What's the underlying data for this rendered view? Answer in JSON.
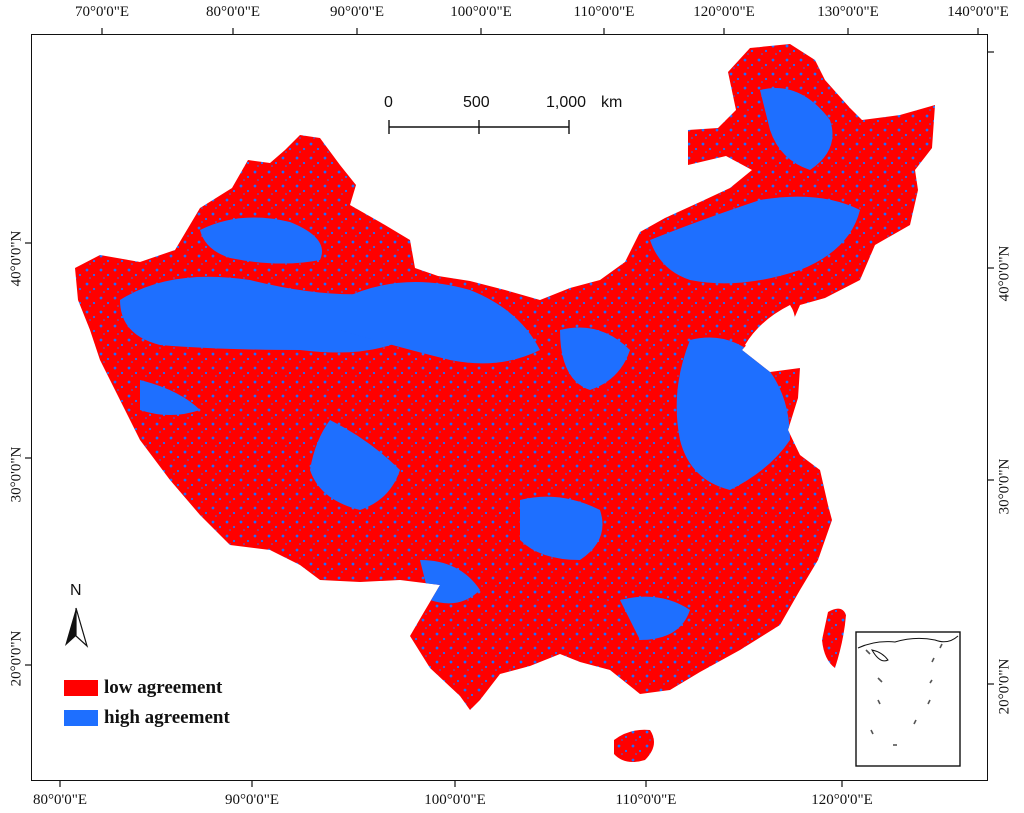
{
  "axes": {
    "top": [
      "70°0'0\"E",
      "80°0'0\"E",
      "90°0'0\"E",
      "100°0'0\"E",
      "110°0'0\"E",
      "120°0'0\"E",
      "130°0'0\"E",
      "140°0'0\"E"
    ],
    "bottom": [
      "80°0'0\"E",
      "90°0'0\"E",
      "100°0'0\"E",
      "110°0'0\"E",
      "120°0'0\"E"
    ],
    "left": [
      "40°0'0\"N",
      "30°0'0\"N",
      "20°0'0\"N"
    ],
    "right": [
      "40°0'0\"N",
      "30°0'0\"N",
      "20°0'0\"N"
    ]
  },
  "scale_bar": {
    "labels": [
      "0",
      "500",
      "1,000"
    ],
    "unit": "km"
  },
  "north_arrow": {
    "label": "N"
  },
  "legend": [
    {
      "label": "low agreement",
      "color": "#ff0000"
    },
    {
      "label": "high agreement",
      "color": "#1e6fff"
    }
  ],
  "inset": {
    "name": "south-china-sea-inset"
  }
}
